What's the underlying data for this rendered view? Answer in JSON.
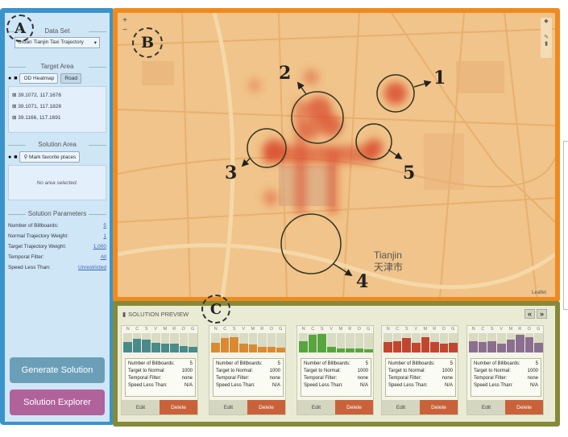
{
  "panel_labels": {
    "a": "A",
    "b": "B",
    "c": "C"
  },
  "data_set": {
    "title": "Data Set",
    "value": "Urban Tianjin Taxi Trajectory"
  },
  "target_area": {
    "title": "Target Area",
    "tabs": [
      "OD Heatmap",
      "Road"
    ],
    "coords": [
      "39.1072, 117.1676",
      "39.1071, 117.1828",
      "39.1166, 117.1691"
    ]
  },
  "solution_area": {
    "title": "Solution Area",
    "mark_button": "Mark favorite places",
    "empty_text": "No area selected."
  },
  "solution_parameters": {
    "title": "Solution Parameters",
    "rows": [
      {
        "label": "Number of Billboards:",
        "value": "5"
      },
      {
        "label": "Normal Trajectory Weight:",
        "value": "1"
      },
      {
        "label": "Target Trajectory Weight:",
        "value": "1,000"
      },
      {
        "label": "Temporal Filter:",
        "value": "All"
      },
      {
        "label": "Speed Less Than:",
        "value": "Unrestricted"
      }
    ]
  },
  "buttons": {
    "generate": "Generate Solution",
    "explorer": "Solution Explorer"
  },
  "map": {
    "zoom_in": "+",
    "zoom_out": "−",
    "city_label": "Tianjin",
    "city_label_cn": "天津市",
    "attribution": "Leaflet",
    "callouts": [
      "1",
      "2",
      "3",
      "4",
      "5"
    ]
  },
  "solution_preview": {
    "title": "SOLUTION PREVIEW",
    "nav_prev": "«",
    "nav_next": "»",
    "bar_letters": [
      "N",
      "C",
      "S",
      "V",
      "M",
      "R",
      "O",
      "G"
    ],
    "cards": [
      {
        "color": "#4a8a8a",
        "values": [
          0.55,
          0.7,
          0.65,
          0.5,
          0.45,
          0.45,
          0.35,
          0.3
        ],
        "billboards": "5",
        "target_to_normal": "1000",
        "temporal": "none",
        "speed": "N/A"
      },
      {
        "color": "#d98a32",
        "values": [
          0.5,
          0.75,
          0.8,
          0.45,
          0.4,
          0.3,
          0.3,
          0.25
        ],
        "billboards": "5",
        "target_to_normal": "1000",
        "temporal": "none",
        "speed": "N/A"
      },
      {
        "color": "#58a540",
        "values": [
          0.6,
          0.9,
          0.95,
          0.3,
          0.2,
          0.2,
          0.2,
          0.15
        ],
        "billboards": "5",
        "target_to_normal": "1000",
        "temporal": "none",
        "speed": "N/A"
      },
      {
        "color": "#c2452f",
        "values": [
          0.55,
          0.6,
          0.75,
          0.5,
          0.8,
          0.55,
          0.45,
          0.5
        ],
        "billboards": "5",
        "target_to_normal": "1000",
        "temporal": "none",
        "speed": "N/A"
      },
      {
        "color": "#8a6f8f",
        "values": [
          0.6,
          0.55,
          0.6,
          0.45,
          0.65,
          0.9,
          0.8,
          0.5
        ],
        "billboards": "5",
        "target_to_normal": "1000",
        "temporal": "none",
        "speed": "N/A"
      }
    ],
    "labels": {
      "billboards": "Number of Billboards:",
      "target_to_normal": "Target to Normal:",
      "temporal": "Temporal Filter:",
      "speed": "Speed Less Than:",
      "edit": "Edit",
      "delete": "Delete"
    }
  }
}
